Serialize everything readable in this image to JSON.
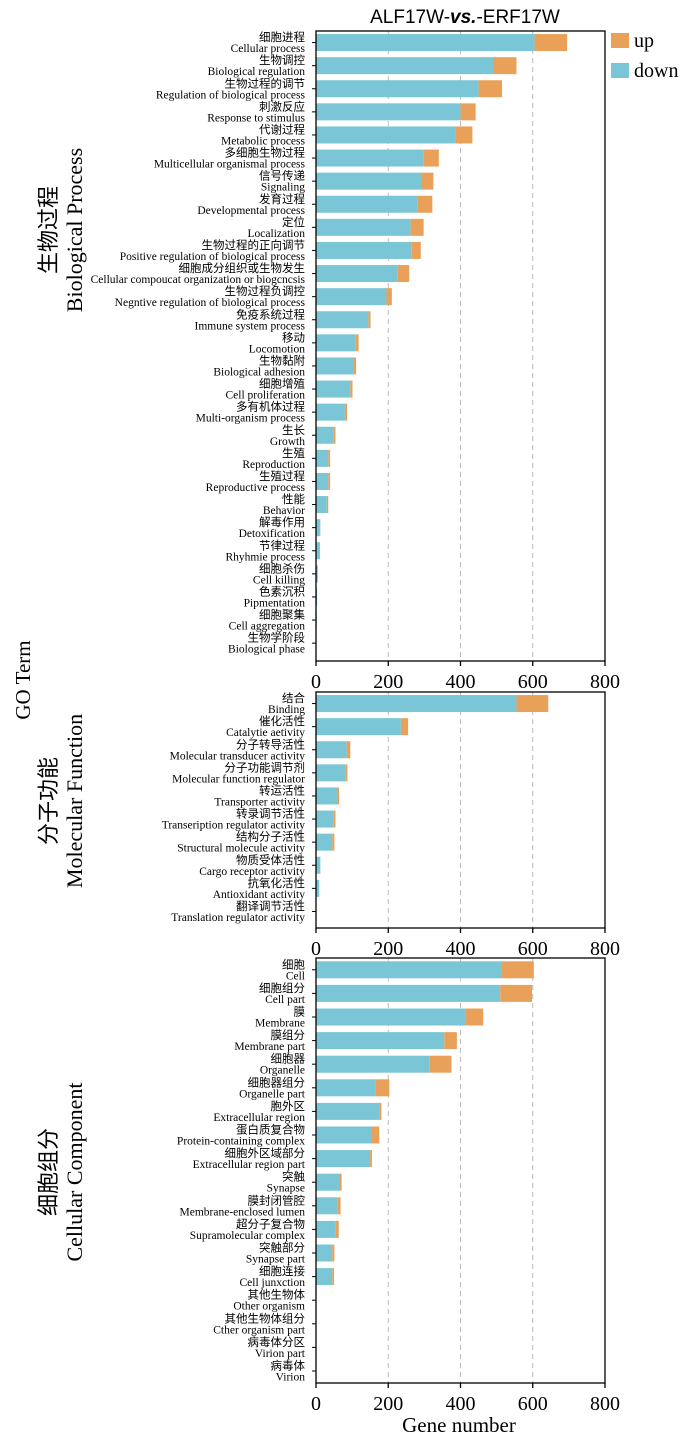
{
  "chart_data": {
    "type": "bar",
    "orientation": "horizontal",
    "stacked": true,
    "title": "ALF17W-vs.-ERF17W",
    "title_parts": [
      "ALF17W-",
      "vs.",
      "-ERF17W"
    ],
    "xlabel": "Gene number",
    "ylabel": "GO Term",
    "xlim": [
      0,
      800
    ],
    "xticks": [
      0,
      200,
      400,
      600,
      800
    ],
    "grid": "vertical dashed at 200, 400, 600",
    "legend": {
      "position": "top-right",
      "entries": [
        {
          "name": "up",
          "color": "#E9A15A"
        },
        {
          "name": "down",
          "color": "#7AC6D6"
        }
      ]
    },
    "colors": {
      "up": "#E9A15A",
      "down": "#7AC6D6",
      "grid": "#bbbbbb"
    },
    "panels": [
      {
        "label_cn": "生物过程",
        "label_en": "Biological Process",
        "categories": [
          {
            "cn": "细胞进程",
            "en": "Cellular process",
            "down": 605,
            "up": 90
          },
          {
            "cn": "生物调控",
            "en": "Biological regulation",
            "down": 490,
            "up": 65
          },
          {
            "cn": "生物过程的调节",
            "en": "Regulation of biological process",
            "down": 450,
            "up": 65
          },
          {
            "cn": "刺激反应",
            "en": "Response to stimulus",
            "down": 400,
            "up": 42
          },
          {
            "cn": "代谢过程",
            "en": "Metabolic process",
            "down": 385,
            "up": 48
          },
          {
            "cn": "多细胞生物过程",
            "en": "Multicellular organismal process",
            "down": 298,
            "up": 42
          },
          {
            "cn": "信号传递",
            "en": "Signaling",
            "down": 292,
            "up": 33
          },
          {
            "cn": "发育过程",
            "en": "Developmental process",
            "down": 282,
            "up": 40
          },
          {
            "cn": "定位",
            "en": "Localization",
            "down": 262,
            "up": 36
          },
          {
            "cn": "生物过程的正向调节",
            "en": "Positive regulation of biological process",
            "down": 265,
            "up": 25
          },
          {
            "cn": "细胞成分组织或生物发生",
            "en": "Cellular compoucat organization or biogcncsis",
            "down": 225,
            "up": 33
          },
          {
            "cn": "生物过程负调控",
            "en": "Negntive regulation of biological process",
            "down": 195,
            "up": 15
          },
          {
            "cn": "免疫系统过程",
            "en": "Immune system process",
            "down": 145,
            "up": 6
          },
          {
            "cn": "移动",
            "en": "Locomotion",
            "down": 110,
            "up": 8
          },
          {
            "cn": "生物黏附",
            "en": "Biological adhesion",
            "down": 105,
            "up": 6
          },
          {
            "cn": "细胞增殖",
            "en": "Cell proliferation",
            "down": 95,
            "up": 6
          },
          {
            "cn": "多有机体过程",
            "en": "Multi-organism process",
            "down": 80,
            "up": 6
          },
          {
            "cn": "生长",
            "en": "Growth",
            "down": 48,
            "up": 6
          },
          {
            "cn": "生殖",
            "en": "Reproduction",
            "down": 34,
            "up": 5
          },
          {
            "cn": "生殖过程",
            "en": "Reproductive process",
            "down": 34,
            "up": 5
          },
          {
            "cn": "性能",
            "en": "Behavior",
            "down": 30,
            "up": 4
          },
          {
            "cn": "解毒作用",
            "en": "Detoxification",
            "down": 12,
            "up": 0
          },
          {
            "cn": "节律过程",
            "en": "Rhyhmie process",
            "down": 11,
            "up": 0
          },
          {
            "cn": "细胞杀伤",
            "en": "Cell killing",
            "down": 5,
            "up": 0
          },
          {
            "cn": "色素沉积",
            "en": "Pipmentation",
            "down": 3,
            "up": 0
          },
          {
            "cn": "细胞聚集",
            "en": "Cell aggregation",
            "down": 2,
            "up": 0
          },
          {
            "cn": "生物学阶段",
            "en": "Biological phase",
            "down": 1,
            "up": 0
          }
        ]
      },
      {
        "label_cn": "分子功能",
        "label_en": "Molecular Function",
        "categories": [
          {
            "cn": "结合",
            "en": "Binding",
            "down": 555,
            "up": 88
          },
          {
            "cn": "催化活性",
            "en": "Catalytie aetivity",
            "down": 235,
            "up": 20
          },
          {
            "cn": "分子转导活性",
            "en": "Molecular transducer activity",
            "down": 85,
            "up": 10
          },
          {
            "cn": "分子功能调节剂",
            "en": "Molecular function regulator",
            "down": 82,
            "up": 5
          },
          {
            "cn": "转运活性",
            "en": "Transporter activity",
            "down": 58,
            "up": 6
          },
          {
            "cn": "转录调节活性",
            "en": "Transeription regulator activity",
            "down": 48,
            "up": 6
          },
          {
            "cn": "结构分子活性",
            "en": "Structural molecule activity",
            "down": 45,
            "up": 6
          },
          {
            "cn": "物质受体活性",
            "en": "Cargo receptor activity",
            "down": 12,
            "up": 0
          },
          {
            "cn": "抗氧化活性",
            "en": "Antioxidant activity",
            "down": 9,
            "up": 0
          },
          {
            "cn": "翻译调节活性",
            "en": "Translation regulator activity",
            "down": 1,
            "up": 0
          }
        ]
      },
      {
        "label_cn": "细胞组分",
        "label_en": "Cellular Component",
        "categories": [
          {
            "cn": "细胞",
            "en": "Cell",
            "down": 515,
            "up": 88
          },
          {
            "cn": "细胞组分",
            "en": "Cell part",
            "down": 510,
            "up": 88
          },
          {
            "cn": "膜",
            "en": "Membrane",
            "down": 415,
            "up": 48
          },
          {
            "cn": "膜组分",
            "en": "Membrane part",
            "down": 355,
            "up": 35
          },
          {
            "cn": "细胞器",
            "en": "Organelle",
            "down": 315,
            "up": 60
          },
          {
            "cn": "细胞器组分",
            "en": "Organelle part",
            "down": 165,
            "up": 38
          },
          {
            "cn": "胞外区",
            "en": "Extracellular region",
            "down": 175,
            "up": 6
          },
          {
            "cn": "蛋白质复合物",
            "en": "Protein-containing complex",
            "down": 155,
            "up": 20
          },
          {
            "cn": "细胞外区域部分",
            "en": "Extracellular region part",
            "down": 150,
            "up": 5
          },
          {
            "cn": "突触",
            "en": "Synapse",
            "down": 65,
            "up": 6
          },
          {
            "cn": "膜封闭管腔",
            "en": "Membrane-enclosed lumen",
            "down": 60,
            "up": 8
          },
          {
            "cn": "超分子复合物",
            "en": "Supramolecular complex",
            "down": 55,
            "up": 8
          },
          {
            "cn": "突触部分",
            "en": "Synapse part",
            "down": 45,
            "up": 6
          },
          {
            "cn": "细胞连接",
            "en": "Cell junxction",
            "down": 45,
            "up": 5
          },
          {
            "cn": "其他生物体",
            "en": "Other organism",
            "down": 0,
            "up": 0
          },
          {
            "cn": "其他生物体组分",
            "en": "Cther organism part",
            "down": 0,
            "up": 0
          },
          {
            "cn": "病毒体分区",
            "en": "Virion part",
            "down": 0,
            "up": 0
          },
          {
            "cn": "病毒体",
            "en": "Virion",
            "down": 0,
            "up": 0
          }
        ]
      }
    ]
  }
}
